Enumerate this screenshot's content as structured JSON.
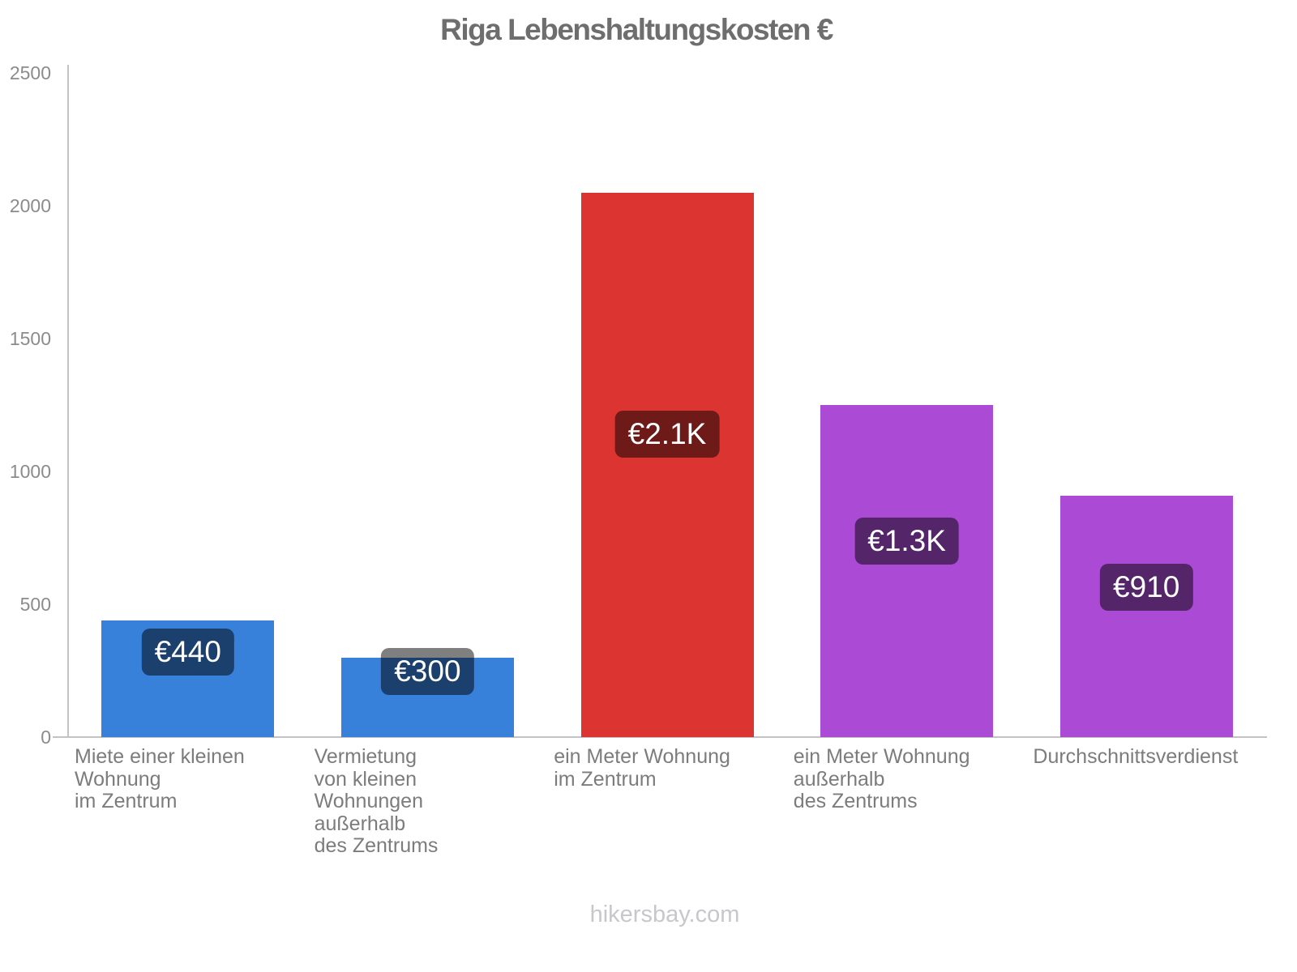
{
  "title": "Riga Lebenshaltungskosten €",
  "footer": "hikersbay.com",
  "colors": {
    "blue_bar": "#3781db",
    "red_bar": "#dc3430",
    "purple_bar": "#ab4ad4",
    "badge_overlay": "rgba(0,0,0,0.5)",
    "axis": "#c3c3c3",
    "title_text": "#6e6e6e",
    "tick_text": "#8b8b8b",
    "category_text": "#7c7c7c",
    "watermark_text": "#c7c7cc"
  },
  "chart_data": {
    "type": "bar",
    "title": "Riga Lebenshaltungskosten €",
    "xlabel": "",
    "ylabel": "",
    "ylim": [
      0,
      2500
    ],
    "yticks": [
      0,
      500,
      1000,
      1500,
      2000,
      2500
    ],
    "grid": false,
    "legend": false,
    "categories": [
      [
        "Miete einer kleinen",
        "Wohnung",
        "im Zentrum"
      ],
      [
        "Vermietung",
        "von kleinen",
        "Wohnungen",
        "außerhalb",
        "des Zentrums"
      ],
      [
        "ein Meter Wohnung",
        "im Zentrum"
      ],
      [
        "ein Meter Wohnung",
        "außerhalb",
        "des Zentrums"
      ],
      [
        "Durchschnittsverdienst"
      ]
    ],
    "values": [
      440,
      300,
      2050,
      1250,
      910
    ],
    "value_labels": [
      "€440",
      "€300",
      "€2.1K",
      "€1.3K",
      "€910"
    ],
    "bar_colors": [
      "#3781db",
      "#3781db",
      "#dc3430",
      "#ab4ad4",
      "#ab4ad4"
    ],
    "footer": "hikersbay.com"
  }
}
